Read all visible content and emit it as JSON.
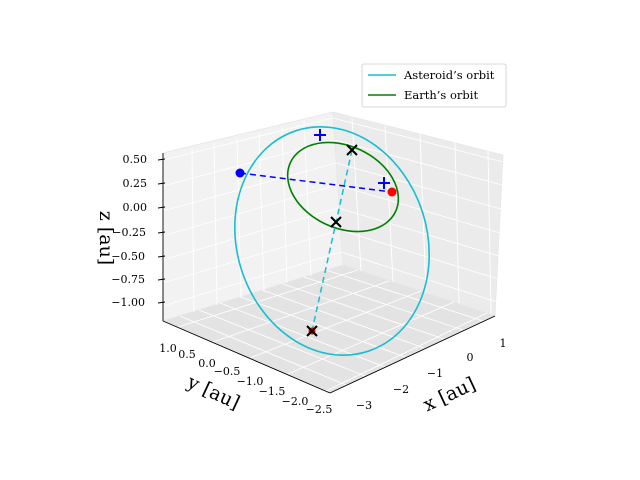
{
  "chart_data": {
    "type": "line",
    "projection": "3d",
    "xlabel": "$x$ [au]",
    "ylabel": "$y$ [au]",
    "zlabel": "$z$ [au]",
    "x_ticks": [
      "−3",
      "−2",
      "−1",
      "0",
      "1"
    ],
    "y_ticks": [
      "1.0",
      "0.5",
      "0.0",
      "−0.5",
      "−1.0",
      "−1.5",
      "−2.0",
      "−2.5"
    ],
    "z_ticks": [
      "0.50",
      "0.25",
      "0.00",
      "−0.25",
      "−0.50",
      "−0.75",
      "−1.00"
    ],
    "legend_position": "top-right",
    "series": [
      {
        "name": "Asteroid’s orbit",
        "color": "#17becf",
        "style": "solid"
      },
      {
        "name": "Earth’s orbit",
        "color": "#008000",
        "style": "solid"
      }
    ],
    "colors": {
      "blue": "#0000ff",
      "red": "#ff0000",
      "black": "#000000",
      "cyan": "#17becf",
      "green": "#008000"
    }
  }
}
